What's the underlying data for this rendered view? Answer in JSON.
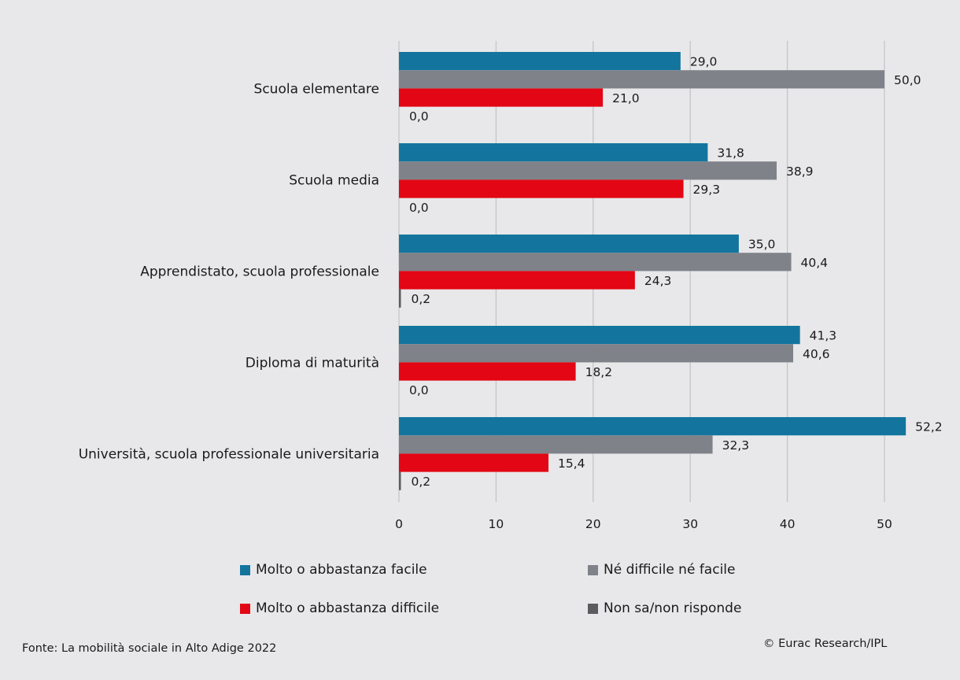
{
  "chart_data": {
    "type": "bar",
    "orientation": "horizontal",
    "categories": [
      "Scuola elementare",
      "Scuola media",
      "Apprendistato, scuola professionale",
      "Diploma di maturità",
      "Università, scuola professionale universitaria"
    ],
    "series": [
      {
        "name": "Molto o abbastanza facile",
        "color": "#13759e",
        "values": [
          29.0,
          31.8,
          35.0,
          41.3,
          52.2
        ],
        "labels": [
          "29,0",
          "31,8",
          "35,0",
          "41,3",
          "52,2"
        ]
      },
      {
        "name": "Né difficile né facile",
        "color": "#7f8289",
        "values": [
          50.0,
          38.9,
          40.4,
          40.6,
          32.3
        ],
        "labels": [
          "50,0",
          "38,9",
          "40,4",
          "40,6",
          "32,3"
        ]
      },
      {
        "name": "Molto o abbastanza difficile",
        "color": "#e30614",
        "values": [
          21.0,
          29.3,
          24.3,
          18.2,
          15.4
        ],
        "labels": [
          "21,0",
          "29,3",
          "24,3",
          "18,2",
          "15,4"
        ]
      },
      {
        "name": "Non sa/non risponde",
        "color": "#5a5c60",
        "values": [
          0.0,
          0.0,
          0.2,
          0.0,
          0.2
        ],
        "labels": [
          "0,0",
          "0,0",
          "0,2",
          "0,0",
          "0,2"
        ]
      }
    ],
    "xlim": [
      0,
      55
    ],
    "xticks": [
      0,
      10,
      20,
      30,
      40,
      50
    ],
    "xtick_labels": [
      "0",
      "10",
      "20",
      "30",
      "40",
      "50"
    ],
    "grid": true,
    "legend_position": "bottom"
  },
  "legend": [
    {
      "label": "Molto o abbastanza facile",
      "color": "#13759e"
    },
    {
      "label": "Né difficile né facile",
      "color": "#7f8289"
    },
    {
      "label": "Molto o abbastanza difficile",
      "color": "#e30614"
    },
    {
      "label": "Non sa/non risponde",
      "color": "#5a5c60"
    }
  ],
  "footer": {
    "source": "Fonte: La mobilità sociale in Alto Adige 2022",
    "copyright": "© Eurac Research/IPL"
  }
}
